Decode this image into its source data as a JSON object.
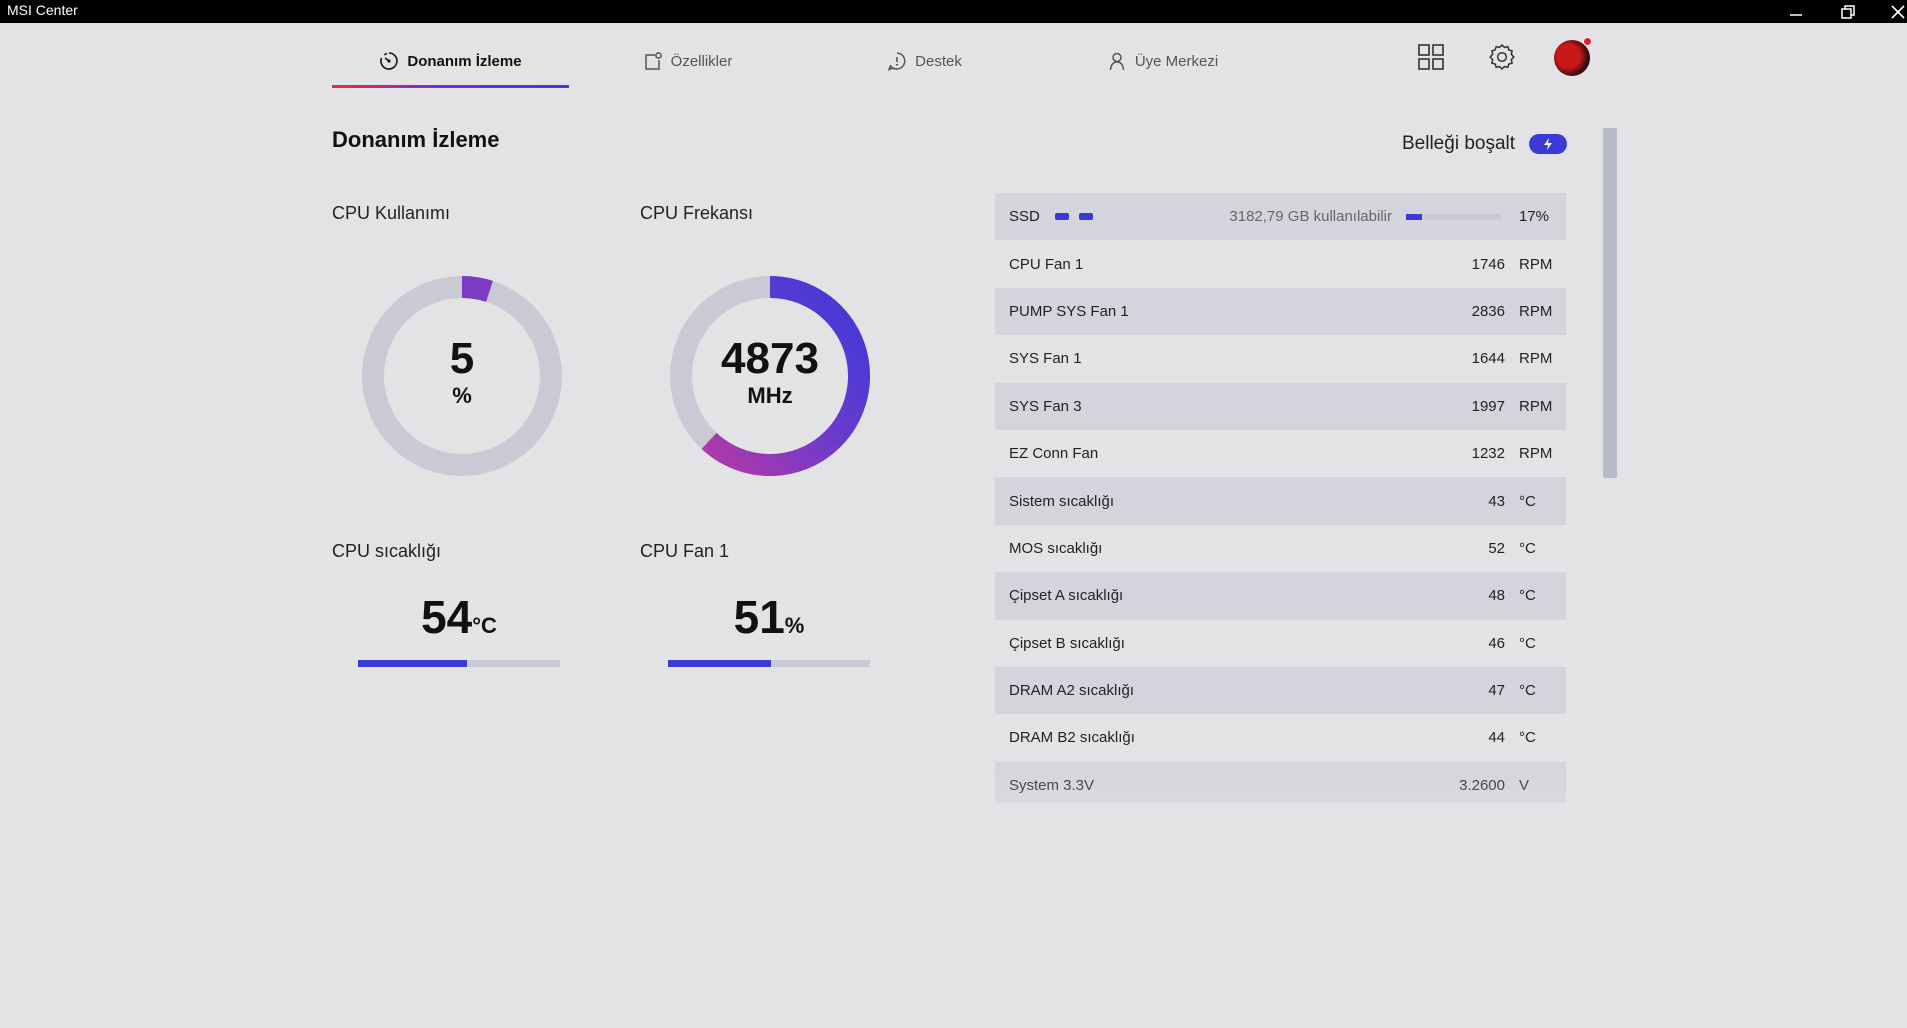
{
  "window": {
    "title": "MSI Center"
  },
  "tabs": [
    {
      "label": "Donanım İzleme",
      "active": true,
      "icon": "monitor-gauge-icon"
    },
    {
      "label": "Özellikler",
      "active": false,
      "icon": "features-icon"
    },
    {
      "label": "Destek",
      "active": false,
      "icon": "support-icon"
    },
    {
      "label": "Üye Merkezi",
      "active": false,
      "icon": "user-icon"
    }
  ],
  "header_icons": [
    "grid-icon",
    "gear-icon",
    "avatar"
  ],
  "page": {
    "title": "Donanım İzleme",
    "release_memory_label": "Belleği boşalt"
  },
  "cpu_usage": {
    "label": "CPU Kullanımı",
    "value": "5",
    "unit": "%",
    "fraction": 0.05
  },
  "cpu_freq": {
    "label": "CPU Frekansı",
    "value": "4873",
    "unit": "MHz",
    "fraction": 0.62
  },
  "cpu_temp": {
    "label": "CPU sıcaklığı",
    "value": "54",
    "unit": "°C",
    "fraction": 0.54
  },
  "cpu_fan": {
    "label": "CPU Fan 1",
    "value": "51",
    "unit": "%",
    "fraction": 0.51
  },
  "ssd": {
    "name": "SSD",
    "available": "3182,79 GB kullanılabilir",
    "percent": "17%",
    "fraction": 0.17
  },
  "sensors": [
    {
      "name": "CPU Fan 1",
      "value": "1746",
      "unit": "RPM"
    },
    {
      "name": "PUMP SYS Fan 1",
      "value": "2836",
      "unit": "RPM"
    },
    {
      "name": "SYS Fan 1",
      "value": "1644",
      "unit": "RPM"
    },
    {
      "name": "SYS Fan 3",
      "value": "1997",
      "unit": "RPM"
    },
    {
      "name": "EZ Conn Fan",
      "value": "1232",
      "unit": "RPM"
    },
    {
      "name": "Sistem sıcaklığı",
      "value": "43",
      "unit": "°C"
    },
    {
      "name": "MOS sıcaklığı",
      "value": "52",
      "unit": "°C"
    },
    {
      "name": "Çipset A sıcaklığı",
      "value": "48",
      "unit": "°C"
    },
    {
      "name": "Çipset B sıcaklığı",
      "value": "46",
      "unit": "°C"
    },
    {
      "name": "DRAM A2 sıcaklığı",
      "value": "47",
      "unit": "°C"
    },
    {
      "name": "DRAM B2 sıcaklığı",
      "value": "44",
      "unit": "°C"
    },
    {
      "name": "System 3.3V",
      "value": "3.2600",
      "unit": "V"
    }
  ],
  "colors": {
    "accent": "#3b3ad6",
    "gradient_start": "#b23aa8",
    "track": "#c9cad3",
    "background": "#e3e3e5",
    "tab_underline_start": "#e0313b"
  }
}
